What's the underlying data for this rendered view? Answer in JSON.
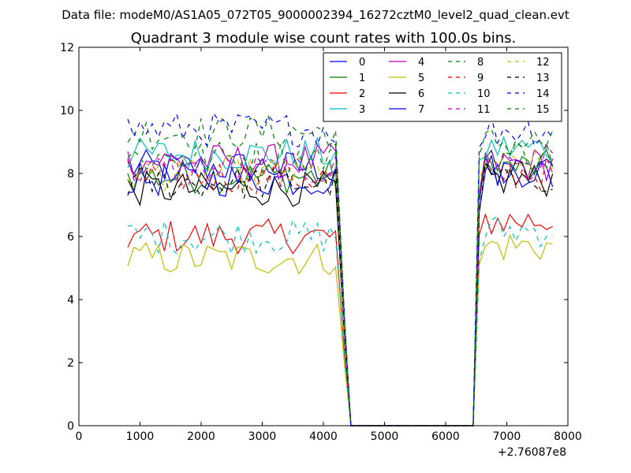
{
  "chart_data": {
    "type": "line",
    "suptitle": "Data file: modeM0/AS1A05_072T05_9000002394_16272cztM0_level2_quad_clean.evt",
    "title": "Quadrant 3 module wise count rates with 100.0s bins.",
    "xlabel": "",
    "ylabel": "",
    "x_offset_label": "+2.76087e8",
    "xlim": [
      0,
      8000
    ],
    "ylim": [
      0,
      12
    ],
    "xticks": [
      0,
      1000,
      2000,
      3000,
      4000,
      5000,
      6000,
      7000,
      8000
    ],
    "yticks": [
      0,
      2,
      4,
      6,
      8,
      10,
      12
    ],
    "xtick_labels": [
      "0",
      "1000",
      "2000",
      "3000",
      "4000",
      "5000",
      "6000",
      "7000",
      "8000"
    ],
    "ytick_labels": [
      "0",
      "2",
      "4",
      "6",
      "8",
      "10",
      "12"
    ],
    "bin_width": 100,
    "gap_start": 4450,
    "gap_end": 6450,
    "x_segment1": [
      800,
      4250
    ],
    "x_segment2": [
      6550,
      7750
    ],
    "legend_placement": "top-right",
    "series": [
      {
        "name": "0",
        "color": "#0000ff",
        "dash": "solid",
        "mean1": 8.2,
        "mean2": 8.0
      },
      {
        "name": "1",
        "color": "#008000",
        "dash": "solid",
        "mean1": 7.9,
        "mean2": 8.2
      },
      {
        "name": "2",
        "color": "#ff0000",
        "dash": "solid",
        "mean1": 6.0,
        "mean2": 6.5
      },
      {
        "name": "3",
        "color": "#00bfbf",
        "dash": "solid",
        "mean1": 8.6,
        "mean2": 8.8
      },
      {
        "name": "4",
        "color": "#bf00bf",
        "dash": "solid",
        "mean1": 8.4,
        "mean2": 8.3
      },
      {
        "name": "5",
        "color": "#bfbf00",
        "dash": "solid",
        "mean1": 5.3,
        "mean2": 5.7
      },
      {
        "name": "6",
        "color": "#000000",
        "dash": "solid",
        "mean1": 7.5,
        "mean2": 7.8
      },
      {
        "name": "7",
        "color": "#0000ff",
        "dash": "solid",
        "mean1": 7.8,
        "mean2": 8.1
      },
      {
        "name": "8",
        "color": "#008000",
        "dash": "dashed",
        "mean1": 9.3,
        "mean2": 9.0
      },
      {
        "name": "9",
        "color": "#ff0000",
        "dash": "dashed",
        "mean1": 7.9,
        "mean2": 8.0
      },
      {
        "name": "10",
        "color": "#00bfbf",
        "dash": "dashed",
        "mean1": 6.0,
        "mean2": 6.2
      },
      {
        "name": "11",
        "color": "#bf00bf",
        "dash": "dashed",
        "mean1": 8.1,
        "mean2": 8.4
      },
      {
        "name": "12",
        "color": "#bfbf00",
        "dash": "dashed",
        "mean1": 8.0,
        "mean2": 8.2
      },
      {
        "name": "13",
        "color": "#000000",
        "dash": "dashed",
        "mean1": 7.7,
        "mean2": 7.9
      },
      {
        "name": "14",
        "color": "#0000ff",
        "dash": "dashed",
        "mean1": 9.4,
        "mean2": 9.4
      },
      {
        "name": "15",
        "color": "#008000",
        "dash": "dashed",
        "mean1": 8.5,
        "mean2": 8.6
      }
    ]
  }
}
